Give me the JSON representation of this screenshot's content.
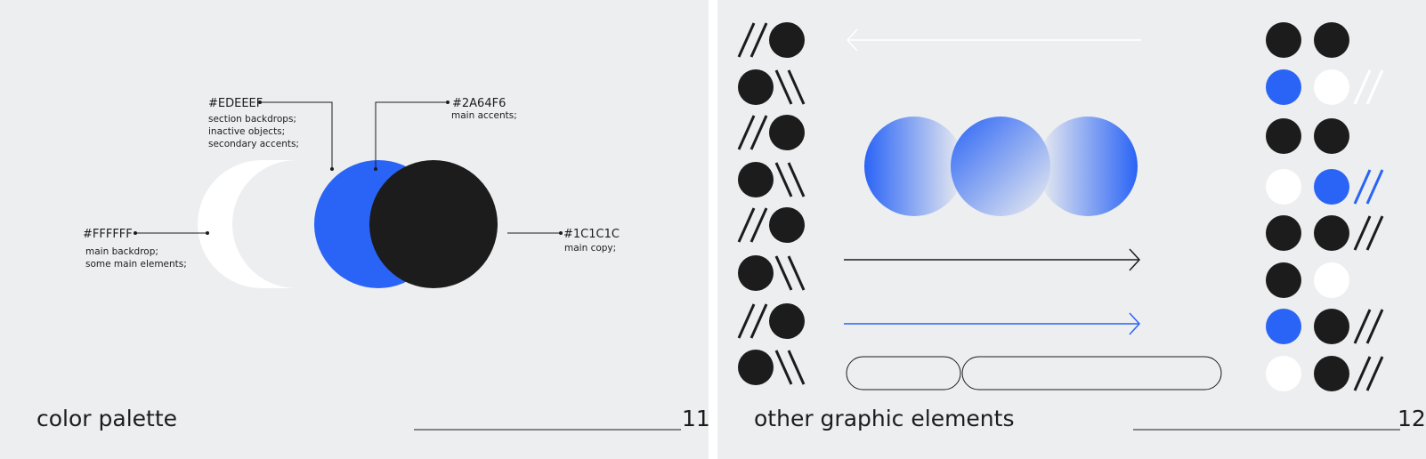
{
  "slides": [
    {
      "title": "color palette",
      "page_number": "11",
      "swatches": [
        {
          "hex": "#FFFFFF",
          "description": [
            "main backdrop;",
            "some main elements;"
          ],
          "color": "#ffffff"
        },
        {
          "hex": "#EDEEEF",
          "description": [
            "section backdrops;",
            "inactive objects;",
            "secondary accents;"
          ],
          "color": "#edeeef"
        },
        {
          "hex": "#2A64F6",
          "description": [
            "main accents;"
          ],
          "color": "#2a64f6"
        },
        {
          "hex": "#1C1C1C",
          "description": [
            "main copy;"
          ],
          "color": "#1c1c1c"
        }
      ]
    },
    {
      "title": "other graphic elements",
      "page_number": "12",
      "colors": {
        "accent": "#2a64f6",
        "dark": "#1c1c1c",
        "light": "#ffffff"
      }
    }
  ]
}
